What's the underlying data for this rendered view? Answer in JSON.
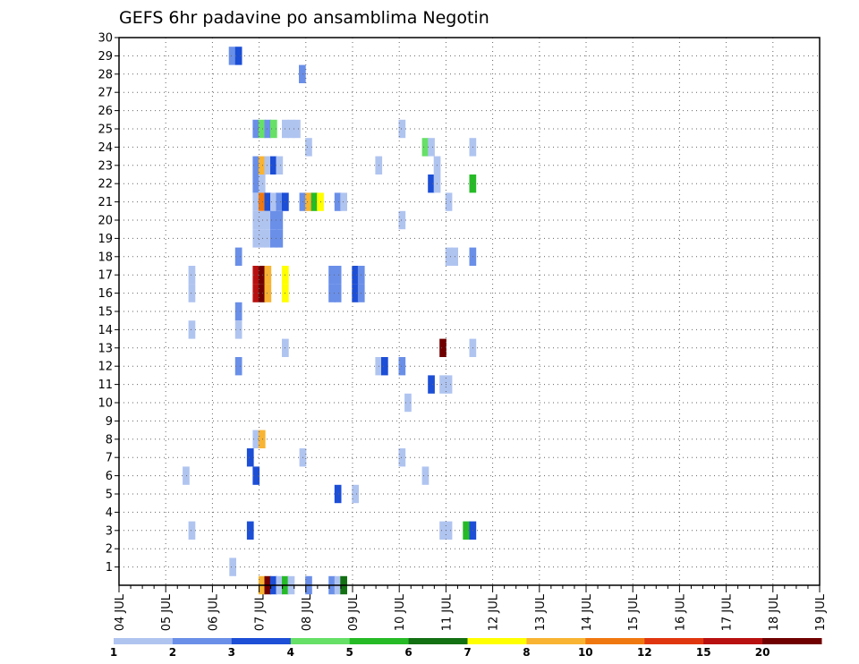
{
  "chart_data": {
    "type": "heatmap",
    "title": "GEFS 6hr padavine po ansamblima Negotin",
    "xlabel": "",
    "ylabel": "",
    "x_unit": "6-hour step",
    "x_ticks": [
      "04 JUL",
      "05 JUL",
      "06 JUL",
      "07 JUL",
      "08 JUL",
      "09 JUL",
      "10 JUL",
      "11 JUL",
      "12 JUL",
      "13 JUL",
      "14 JUL",
      "15 JUL",
      "16 JUL",
      "17 JUL",
      "18 JUL",
      "19 JUL"
    ],
    "xlim": [
      0,
      60
    ],
    "ylim": [
      0,
      30
    ],
    "y_ticks": [
      1,
      2,
      3,
      4,
      5,
      6,
      7,
      8,
      9,
      10,
      11,
      12,
      13,
      14,
      15,
      16,
      17,
      18,
      19,
      20,
      21,
      22,
      23,
      24,
      25,
      26,
      27,
      28,
      29,
      30
    ],
    "grid": true,
    "colorbar": {
      "labels": [
        "1",
        "2",
        "3",
        "4",
        "5",
        "6",
        "7",
        "8",
        "10",
        "12",
        "15",
        "20"
      ],
      "colors": [
        "#b0c4f0",
        "#6a8fe8",
        "#1c4ed6",
        "#66e066",
        "#26bb26",
        "#137013",
        "#ffff00",
        "#f8b432",
        "#f07810",
        "#e03610",
        "#b81010",
        "#700000"
      ]
    },
    "series": [
      {
        "member": 29,
        "cells": [
          [
            9.4,
            2
          ],
          [
            9.95,
            3
          ]
        ]
      },
      {
        "member": 28,
        "cells": [
          [
            15.4,
            2
          ]
        ]
      },
      {
        "member": 25,
        "cells": [
          [
            11.45,
            2
          ],
          [
            11.95,
            4
          ],
          [
            12.45,
            2
          ],
          [
            12.95,
            4
          ],
          [
            13.95,
            1
          ],
          [
            14.45,
            1
          ],
          [
            14.95,
            1
          ],
          [
            23.95,
            1
          ]
        ]
      },
      {
        "member": 24,
        "cells": [
          [
            15.95,
            1
          ],
          [
            25.95,
            4
          ],
          [
            26.45,
            1
          ],
          [
            30,
            1
          ]
        ]
      },
      {
        "member": 23,
        "cells": [
          [
            11.45,
            2
          ],
          [
            11.95,
            8
          ],
          [
            12.45,
            1
          ],
          [
            12.95,
            3
          ],
          [
            13.45,
            1
          ],
          [
            21.95,
            1
          ],
          [
            26.95,
            1
          ]
        ]
      },
      {
        "member": 22,
        "cells": [
          [
            11.45,
            2
          ],
          [
            11.95,
            1
          ],
          [
            26.45,
            3
          ],
          [
            26.95,
            1
          ],
          [
            30,
            5
          ]
        ]
      },
      {
        "member": 21,
        "cells": [
          [
            11.45,
            1
          ],
          [
            11.95,
            10
          ],
          [
            12.45,
            3
          ],
          [
            12.95,
            1
          ],
          [
            13.45,
            2
          ],
          [
            13.95,
            3
          ],
          [
            15.45,
            2
          ],
          [
            15.95,
            8
          ],
          [
            16.45,
            5
          ],
          [
            16.95,
            7
          ],
          [
            18.45,
            2
          ],
          [
            18.95,
            1
          ],
          [
            27.95,
            1
          ]
        ]
      },
      {
        "member": 20,
        "cells": [
          [
            11.45,
            1
          ],
          [
            11.95,
            1
          ],
          [
            12.45,
            1
          ],
          [
            12.95,
            2
          ],
          [
            13.45,
            2
          ],
          [
            23.95,
            1
          ]
        ]
      },
      {
        "member": 19,
        "cells": [
          [
            11.45,
            1
          ],
          [
            11.95,
            1
          ],
          [
            12.45,
            1
          ],
          [
            12.95,
            2
          ],
          [
            13.45,
            2
          ]
        ]
      },
      {
        "member": 18,
        "cells": [
          [
            9.95,
            2
          ],
          [
            27.95,
            1
          ],
          [
            28.45,
            1
          ],
          [
            30,
            2
          ]
        ]
      },
      {
        "member": 17,
        "cells": [
          [
            5.95,
            1
          ],
          [
            11.45,
            15
          ],
          [
            11.95,
            20
          ],
          [
            12.45,
            8
          ],
          [
            13.95,
            7
          ],
          [
            17.95,
            2
          ],
          [
            18.45,
            2
          ],
          [
            19.95,
            3
          ],
          [
            20.45,
            2
          ]
        ]
      },
      {
        "member": 16,
        "cells": [
          [
            5.95,
            1
          ],
          [
            11.45,
            15
          ],
          [
            11.95,
            20
          ],
          [
            12.45,
            8
          ],
          [
            13.95,
            7
          ],
          [
            17.95,
            2
          ],
          [
            18.45,
            2
          ],
          [
            19.95,
            3
          ],
          [
            20.45,
            2
          ]
        ]
      },
      {
        "member": 15,
        "cells": [
          [
            9.95,
            2
          ]
        ]
      },
      {
        "member": 14,
        "cells": [
          [
            5.95,
            1
          ],
          [
            9.95,
            1
          ]
        ]
      },
      {
        "member": 13,
        "cells": [
          [
            13.95,
            1
          ],
          [
            27.45,
            20
          ],
          [
            30,
            1
          ]
        ]
      },
      {
        "member": 12,
        "cells": [
          [
            9.95,
            2
          ],
          [
            21.95,
            1
          ],
          [
            22.45,
            3
          ],
          [
            23.95,
            2
          ]
        ]
      },
      {
        "member": 11,
        "cells": [
          [
            26.45,
            3
          ],
          [
            27.45,
            1
          ],
          [
            27.95,
            1
          ]
        ]
      },
      {
        "member": 10,
        "cells": [
          [
            24.45,
            1
          ]
        ]
      },
      {
        "member": 8,
        "cells": [
          [
            11.45,
            1
          ],
          [
            11.95,
            8
          ]
        ]
      },
      {
        "member": 7,
        "cells": [
          [
            10.95,
            3
          ],
          [
            15.45,
            1
          ],
          [
            23.95,
            1
          ]
        ]
      },
      {
        "member": 6,
        "cells": [
          [
            5.45,
            1
          ],
          [
            11.45,
            3
          ],
          [
            25.95,
            1
          ]
        ]
      },
      {
        "member": 5,
        "cells": [
          [
            18.45,
            3
          ],
          [
            19.95,
            1
          ]
        ]
      },
      {
        "member": 3,
        "cells": [
          [
            5.95,
            1
          ],
          [
            10.95,
            3
          ],
          [
            27.45,
            1
          ],
          [
            27.95,
            1
          ],
          [
            29.45,
            5
          ],
          [
            30,
            3
          ]
        ]
      },
      {
        "member": 1,
        "cells": [
          [
            9.45,
            1
          ]
        ]
      },
      {
        "member": 0,
        "cells": [
          [
            11.95,
            8
          ],
          [
            12.45,
            20
          ],
          [
            12.95,
            3
          ],
          [
            13.45,
            1
          ],
          [
            13.95,
            5
          ],
          [
            14.45,
            1
          ],
          [
            15.95,
            2
          ],
          [
            17.95,
            2
          ],
          [
            18.45,
            1
          ],
          [
            18.95,
            6
          ]
        ]
      }
    ]
  }
}
